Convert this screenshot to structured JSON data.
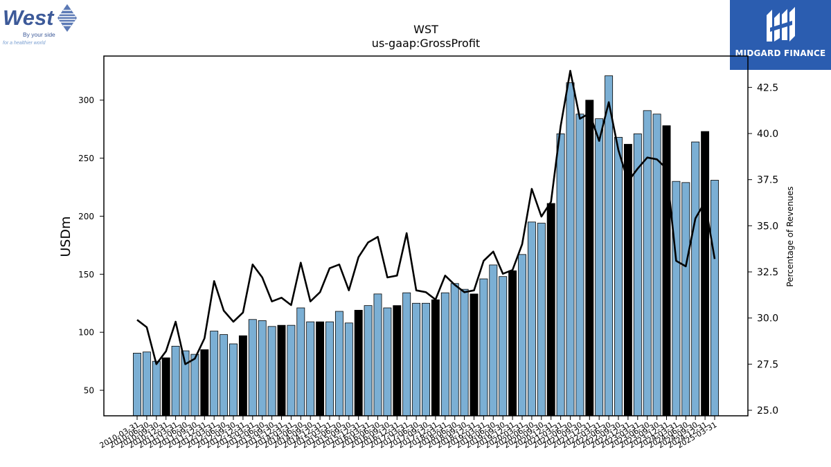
{
  "logos": {
    "left_brand": "West",
    "left_tagline_1": "By your side",
    "left_tagline_2": "for a healthier world",
    "right_brand": "MIDGARD FINANCE"
  },
  "colors": {
    "bar_fill": "#7bafd4",
    "bar_q4": "#000000",
    "line": "#000000",
    "brand_west": "#3d5a99",
    "brand_midgard": "#2b5db0"
  },
  "chart_data": {
    "type": "bar",
    "title": "WST",
    "subtitle": "us-gaap:GrossProfit",
    "ylabel": "USDm",
    "y2label": "Percentage of Revenues",
    "ylim": [
      28,
      338
    ],
    "y2lim": [
      24.7,
      44.2
    ],
    "yticks": [
      50,
      100,
      150,
      200,
      250,
      300
    ],
    "y2ticks": [
      "25.0",
      "27.5",
      "30.0",
      "32.5",
      "35.0",
      "37.5",
      "40.0",
      "42.5"
    ],
    "grid": false,
    "categories": [
      "2010-03-31",
      "2010-06-30",
      "2010-09-30",
      "2010-12-31",
      "2011-03-31",
      "2011-06-30",
      "2011-09-30",
      "2011-12-31",
      "2012-03-31",
      "2012-06-30",
      "2012-09-30",
      "2012-12-31",
      "2013-03-31",
      "2013-06-30",
      "2013-09-30",
      "2013-12-31",
      "2014-03-31",
      "2014-06-30",
      "2014-09-30",
      "2014-12-31",
      "2015-03-31",
      "2015-06-30",
      "2015-09-30",
      "2015-12-31",
      "2016-03-31",
      "2016-06-30",
      "2016-09-30",
      "2016-12-31",
      "2017-03-31",
      "2017-06-30",
      "2017-09-30",
      "2017-12-31",
      "2018-03-31",
      "2018-06-30",
      "2018-09-30",
      "2018-12-31",
      "2019-03-31",
      "2019-06-30",
      "2019-09-30",
      "2019-12-31",
      "2020-03-31",
      "2020-06-30",
      "2020-09-30",
      "2020-12-31",
      "2021-03-31",
      "2021-06-30",
      "2021-09-30",
      "2021-12-31",
      "2022-03-31",
      "2022-06-30",
      "2022-09-30",
      "2022-12-31",
      "2023-03-31",
      "2023-06-30",
      "2023-09-30",
      "2023-12-31",
      "2024-03-31",
      "2024-06-30",
      "2024-09-30",
      "2024-12-31",
      "2025-03-31"
    ],
    "x_tick_labels": [
      "2010-03-31",
      "2010-06-30",
      "2010-09-30",
      "2010-12-31",
      "2011-03-31",
      "2011-06-30",
      "2011-09-30",
      "2011-12-31",
      "2012-03-31",
      "2012-06-30",
      "2012-09-30",
      "2012-12-31",
      "2013-03-31",
      "2013-06-30",
      "2013-09-30",
      "2013-12-31",
      "2014-03-31",
      "2014-06-30",
      "2014-09-30",
      "2014-12-31",
      "2015-03-31",
      "2015-06-30",
      "2015-09-30",
      "2015-12-31",
      "2016-03-31",
      "2016-06-30",
      "2016-09-30",
      "2016-12-31",
      "2017-03-31",
      "2017-06-30",
      "2017-09-30",
      "2017-12-31",
      "2018-03-31",
      "2018-06-30",
      "2018-09-30",
      "2018-12-31",
      "2019-03-31",
      "2019-06-30",
      "2019-09-30",
      "2019-12-31",
      "2020-03-31",
      "2020-06-30",
      "2020-09-30",
      "2020-12-31",
      "2021-03-31",
      "2021-06-30",
      "2021-09-30",
      "2021-12-31",
      "2022-03-31",
      "2022-06-30",
      "2022-09-30",
      "2022-12-31",
      "2023-03-31",
      "2023-06-30",
      "2023-09-30",
      "2023-12-31",
      "2024-03-31",
      "2024-06-30",
      "2024-09-30",
      "2024-12-31",
      "2025-03-31"
    ],
    "series": [
      {
        "type": "bar",
        "axis": "left",
        "values": [
          82,
          83,
          75,
          78,
          88,
          84,
          81,
          85,
          101,
          98,
          90,
          97,
          111,
          110,
          105,
          106,
          106,
          121,
          109,
          109,
          109,
          118,
          108,
          119,
          123,
          133,
          121,
          123,
          134,
          125,
          125,
          128,
          134,
          142,
          137,
          133,
          146,
          158,
          148,
          153,
          167,
          195,
          194,
          211,
          271,
          315,
          288,
          300,
          284,
          321,
          268,
          262,
          271,
          291,
          288,
          278,
          230,
          229,
          264,
          273,
          231
        ],
        "highlight_q4": [
          false,
          false,
          false,
          true,
          false,
          false,
          false,
          true,
          false,
          false,
          false,
          true,
          false,
          false,
          false,
          true,
          false,
          false,
          false,
          true,
          false,
          false,
          false,
          true,
          false,
          false,
          false,
          true,
          false,
          false,
          false,
          true,
          false,
          false,
          false,
          true,
          false,
          false,
          false,
          true,
          false,
          false,
          false,
          true,
          false,
          false,
          false,
          true,
          false,
          false,
          false,
          true,
          false,
          false,
          false,
          true,
          false,
          false,
          false,
          true,
          false
        ]
      },
      {
        "type": "line",
        "axis": "right",
        "values": [
          29.9,
          29.5,
          27.5,
          28.2,
          29.8,
          27.5,
          27.8,
          28.9,
          32.0,
          30.4,
          29.8,
          30.3,
          32.9,
          32.2,
          30.9,
          31.1,
          30.7,
          33.0,
          30.9,
          31.4,
          32.7,
          32.9,
          31.5,
          33.3,
          34.1,
          34.4,
          32.2,
          32.3,
          34.6,
          31.5,
          31.4,
          31.0,
          32.3,
          31.8,
          31.4,
          31.5,
          33.1,
          33.6,
          32.4,
          32.6,
          34.0,
          37.0,
          35.5,
          36.3,
          40.4,
          43.4,
          40.8,
          41.1,
          39.6,
          41.7,
          39.1,
          37.4,
          38.1,
          38.7,
          38.6,
          38.1,
          33.1,
          32.8,
          35.4,
          36.3,
          33.2
        ]
      }
    ]
  }
}
